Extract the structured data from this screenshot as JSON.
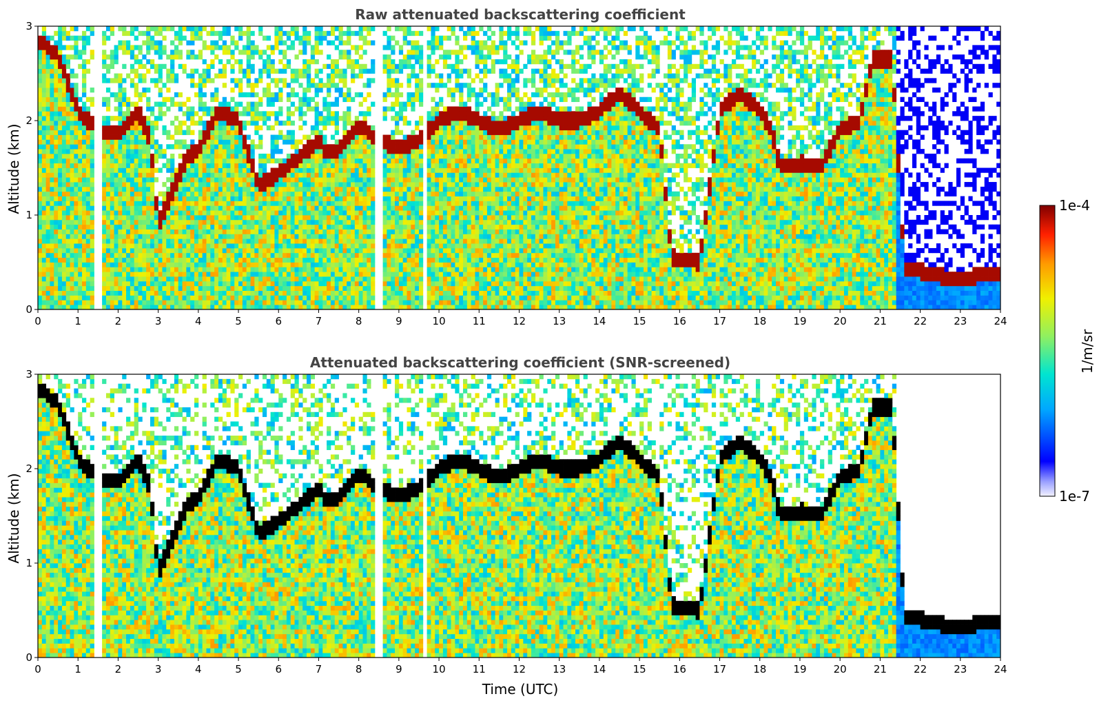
{
  "chart_data": [
    {
      "type": "heatmap",
      "title": "Raw attenuated backscattering coefficient",
      "xlabel": "",
      "ylabel": "Altitude (km)",
      "xlim": [
        0,
        24
      ],
      "ylim": [
        0,
        3
      ],
      "xticks": [
        "0",
        "1",
        "2",
        "3",
        "4",
        "5",
        "6",
        "7",
        "8",
        "9",
        "10",
        "11",
        "12",
        "13",
        "14",
        "15",
        "16",
        "17",
        "18",
        "19",
        "20",
        "21",
        "22",
        "23",
        "24"
      ],
      "yticks": [
        "0",
        "1",
        "2",
        "3"
      ],
      "colorscale": "log",
      "color_range": [
        "1e-7",
        "1e-4"
      ],
      "features": {
        "cloud_top_km": [
          [
            0.0,
            2.85
          ],
          [
            0.5,
            2.7
          ],
          [
            1.0,
            2.1
          ],
          [
            1.5,
            1.9
          ],
          [
            2.0,
            1.85
          ],
          [
            2.5,
            2.1
          ],
          [
            2.8,
            1.8
          ],
          [
            3.0,
            0.9
          ],
          [
            3.3,
            1.2
          ],
          [
            3.7,
            1.6
          ],
          [
            4.0,
            1.7
          ],
          [
            4.5,
            2.1
          ],
          [
            5.0,
            2.0
          ],
          [
            5.5,
            1.3
          ],
          [
            6.0,
            1.45
          ],
          [
            6.5,
            1.6
          ],
          [
            7.0,
            1.8
          ],
          [
            7.2,
            1.65
          ],
          [
            7.5,
            1.7
          ],
          [
            8.0,
            1.95
          ],
          [
            8.5,
            1.8
          ],
          [
            9.0,
            1.7
          ],
          [
            9.5,
            1.8
          ],
          [
            10.0,
            2.0
          ],
          [
            10.5,
            2.1
          ],
          [
            11.0,
            2.0
          ],
          [
            11.5,
            1.9
          ],
          [
            12.0,
            2.0
          ],
          [
            12.5,
            2.1
          ],
          [
            13.0,
            2.0
          ],
          [
            13.5,
            2.0
          ],
          [
            14.0,
            2.1
          ],
          [
            14.5,
            2.3
          ],
          [
            15.0,
            2.1
          ],
          [
            15.5,
            1.9
          ],
          [
            15.8,
            0.55
          ],
          [
            16.5,
            0.5
          ],
          [
            17.0,
            2.1
          ],
          [
            17.5,
            2.3
          ],
          [
            18.0,
            2.1
          ],
          [
            18.3,
            1.9
          ],
          [
            18.5,
            1.5
          ],
          [
            19.0,
            1.55
          ],
          [
            19.5,
            1.5
          ],
          [
            20.0,
            1.9
          ],
          [
            20.5,
            2.0
          ],
          [
            20.8,
            2.65
          ],
          [
            21.3,
            2.65
          ],
          [
            21.6,
            0.45
          ],
          [
            22.0,
            0.4
          ],
          [
            22.5,
            0.35
          ],
          [
            23.0,
            0.33
          ],
          [
            23.5,
            0.36
          ],
          [
            24.0,
            0.38
          ]
        ],
        "missing_data_hours": [
          1.5,
          8.5,
          9.65
        ]
      }
    },
    {
      "type": "heatmap",
      "title": "Attenuated backscattering coefficient (SNR-screened)",
      "xlabel": "Time (UTC)",
      "ylabel": "Altitude (km)",
      "xlim": [
        0,
        24
      ],
      "ylim": [
        0,
        3
      ],
      "xticks": [
        "0",
        "1",
        "2",
        "3",
        "4",
        "5",
        "6",
        "7",
        "8",
        "9",
        "10",
        "11",
        "12",
        "13",
        "14",
        "15",
        "16",
        "17",
        "18",
        "19",
        "20",
        "21",
        "22",
        "23",
        "24"
      ],
      "yticks": [
        "0",
        "1",
        "2",
        "3"
      ],
      "colorscale": "log",
      "color_range": [
        "1e-7",
        "1e-4"
      ],
      "features": {
        "screened": true
      }
    }
  ],
  "colorbar": {
    "label": "1/m/sr",
    "max_label": "1e-4",
    "min_label": "1e-7",
    "colormap": "jet"
  }
}
